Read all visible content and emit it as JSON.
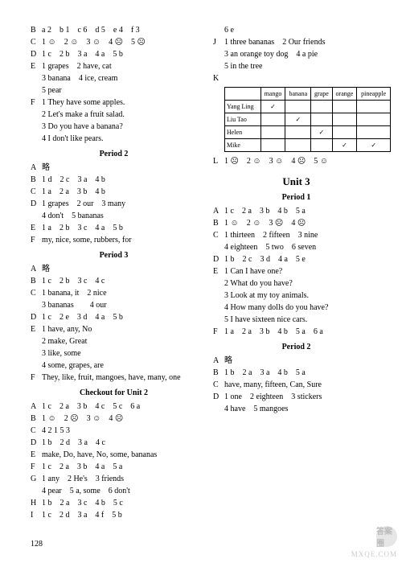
{
  "page_number": "128",
  "watermark_text": "MXQE.COM",
  "watermark_circle": "答案圈",
  "emoticons": {
    "happy": "☺",
    "sad": "☹"
  },
  "table": {
    "headers": [
      "",
      "mango",
      "banana",
      "grape",
      "orange",
      "pineapple"
    ],
    "rows": [
      {
        "label": "Yang Ling",
        "cells": [
          "✓",
          "",
          "",
          "",
          ""
        ]
      },
      {
        "label": "Liu Tao",
        "cells": [
          "",
          "✓",
          "",
          "",
          ""
        ]
      },
      {
        "label": "Helen",
        "cells": [
          "",
          "",
          "✓",
          "",
          ""
        ]
      },
      {
        "label": "Mike",
        "cells": [
          "",
          "",
          "",
          "✓",
          "✓"
        ]
      }
    ]
  },
  "lines": [
    {
      "lbl": "B",
      "cnt": "a 2　b 1　c 6　d 5　e 4　f 3"
    },
    {
      "lbl": "C",
      "cnt": "1 ☺　2 ☺　3 ☺　4 ☹　5 ☹"
    },
    {
      "lbl": "D",
      "cnt": "1 c　2 b　3 a　4 a　5 b"
    },
    {
      "lbl": "E",
      "cnt": "1 grapes　2 have, cat"
    },
    {
      "indent": true,
      "cnt": "3 banana　4 ice, cream"
    },
    {
      "indent": true,
      "cnt": "5 pear"
    },
    {
      "lbl": "F",
      "cnt": "1 They have some apples."
    },
    {
      "indent": true,
      "cnt": "2 Let's make a fruit salad."
    },
    {
      "indent": true,
      "cnt": "3 Do you have a banana?"
    },
    {
      "indent": true,
      "cnt": "4 I don't like pears."
    },
    {
      "heading": "Period 2"
    },
    {
      "lbl": "A",
      "cnt": "略"
    },
    {
      "lbl": "B",
      "cnt": "1 d　2 c　3 a　4 b"
    },
    {
      "lbl": "C",
      "cnt": "1 a　2 a　3 b　4 b"
    },
    {
      "lbl": "D",
      "cnt": "1 grapes　2 our　3 many"
    },
    {
      "indent": true,
      "cnt": "4 don't　5 bananas"
    },
    {
      "lbl": "E",
      "cnt": "1 a　2 b　3 c　4 a　5 b"
    },
    {
      "lbl": "F",
      "cnt": "my, nice, some, rubbers, for"
    },
    {
      "heading": "Period 3"
    },
    {
      "lbl": "A",
      "cnt": "略"
    },
    {
      "lbl": "B",
      "cnt": "1 c　2 b　3 c　4 c"
    },
    {
      "lbl": "C",
      "cnt": "1 banana, it　2 nice"
    },
    {
      "indent": true,
      "cnt": "3 bananas　　4 our"
    },
    {
      "lbl": "D",
      "cnt": "1 c　2 e　3 d　4 a　5 b"
    },
    {
      "lbl": "E",
      "cnt": "1 have, any, No"
    },
    {
      "indent": true,
      "cnt": "2 make, Great"
    },
    {
      "indent": true,
      "cnt": "3 like, some"
    },
    {
      "indent": true,
      "cnt": "4 some, grapes, are"
    },
    {
      "lbl": "F",
      "cnt": "They, like, fruit, mangoes, have, many, one"
    },
    {
      "heading": "Checkout for Unit 2"
    },
    {
      "lbl": "A",
      "cnt": "1 c　2 a　3 b　4 c　5 c　6 a"
    },
    {
      "lbl": "B",
      "cnt": "1 ☺　2 ☹　3 ☺　4 ☹"
    },
    {
      "lbl": "C",
      "cnt": "4 2 1 5 3"
    },
    {
      "lbl": "D",
      "cnt": "1 b　2 d　3 a　4 c"
    },
    {
      "lbl": "E",
      "cnt": "make, Do, have, No, some, bananas"
    },
    {
      "lbl": "F",
      "cnt": "1 c　2 a　3 b　4 a　5 a"
    },
    {
      "lbl": "G",
      "cnt": "1 any　2 He's　3 friends"
    },
    {
      "indent": true,
      "cnt": "4 pear　5 a, some　6 don't"
    },
    {
      "lbl": "H",
      "cnt": "1 b　2 a　3 c　4 b　5 c"
    },
    {
      "lbl": "I",
      "cnt": "1 c　2 d　3 a　4 f　5 b"
    },
    {
      "indent": true,
      "cnt": "6 e"
    },
    {
      "lbl": "J",
      "cnt": "1 three bananas　2 Our friends"
    },
    {
      "indent": true,
      "cnt": "3 an orange toy dog　4 a pie"
    },
    {
      "indent": true,
      "cnt": "5 in the tree"
    },
    {
      "lbl": "K",
      "cnt": ""
    },
    {
      "table": true
    },
    {
      "lbl": "L",
      "cnt": "1 ☹　2 ☺　3 ☺　4 ☹　5 ☺"
    },
    {
      "unit": "Unit 3"
    },
    {
      "heading": "Period 1"
    },
    {
      "lbl": "A",
      "cnt": "1 c　2 a　3 b　4 b　5 a"
    },
    {
      "lbl": "B",
      "cnt": "1 ☺　2 ☺　3 ☹　4 ☹"
    },
    {
      "lbl": "C",
      "cnt": "1 thirteen　2 fifteen　3 nine"
    },
    {
      "indent": true,
      "cnt": "4 eighteen　5 two　6 seven"
    },
    {
      "lbl": "D",
      "cnt": "1 b　2 c　3 d　4 a　5 e"
    },
    {
      "lbl": "E",
      "cnt": "1 Can I have one?"
    },
    {
      "indent": true,
      "cnt": "2 What do you have?"
    },
    {
      "indent": true,
      "cnt": "3 Look at my toy animals."
    },
    {
      "indent": true,
      "cnt": "4 How many dolls do you have?"
    },
    {
      "indent": true,
      "cnt": "5 I have sixteen nice cars."
    },
    {
      "lbl": "F",
      "cnt": "1 a　2 a　3 b　4 b　5 a　6 a"
    },
    {
      "heading": "Period 2"
    },
    {
      "lbl": "A",
      "cnt": "略"
    },
    {
      "lbl": "B",
      "cnt": "1 b　2 a　3 a　4 b　5 a"
    },
    {
      "lbl": "C",
      "cnt": "have, many, fifteen, Can, Sure"
    },
    {
      "lbl": "D",
      "cnt": "1 one　2 eighteen　3 stickers"
    },
    {
      "indent": true,
      "cnt": "4 have　5 mangoes"
    }
  ]
}
